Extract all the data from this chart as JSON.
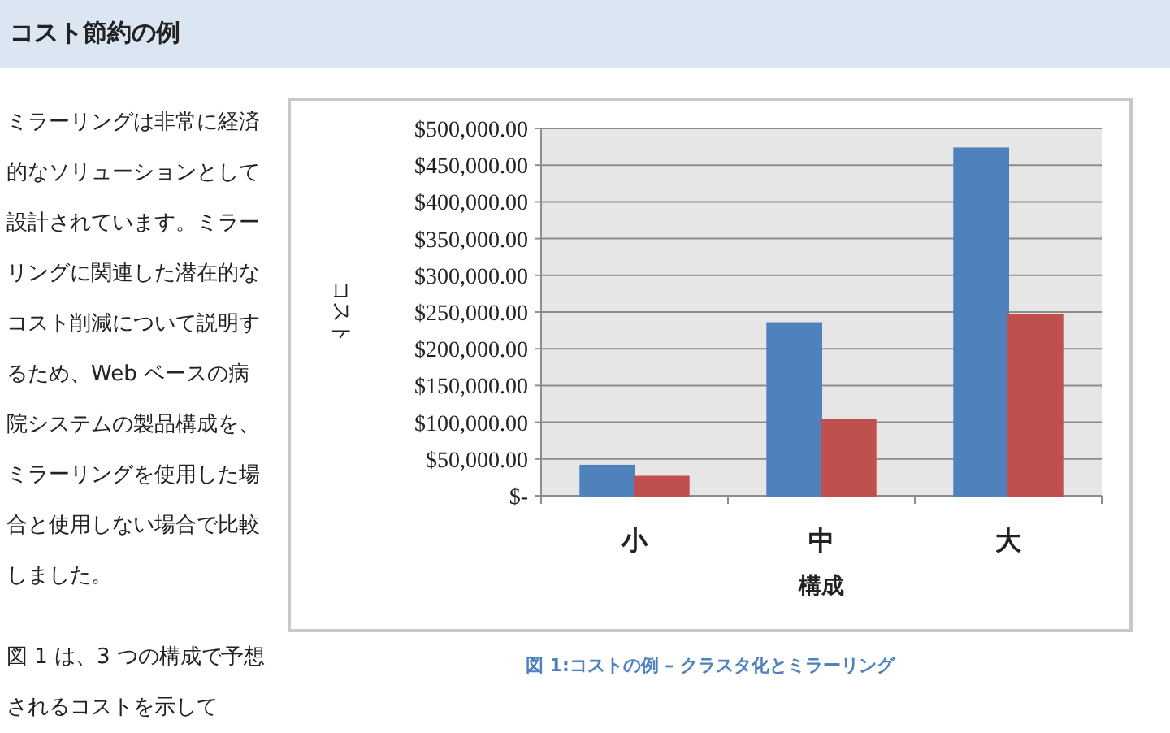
{
  "chart_data": {
    "type": "bar",
    "title": "コスト節約の例",
    "xlabel": "構成",
    "ylabel": "コスト",
    "categories": [
      "小",
      "中",
      "大"
    ],
    "series": [
      {
        "color": "#4f81bd",
        "values": [
          41000,
          235000,
          473000
        ]
      },
      {
        "color": "#c0504d",
        "values": [
          26000,
          103000,
          246000
        ]
      }
    ],
    "ylim": [
      0,
      500000
    ],
    "yticks": [
      {
        "value": 0,
        "label": "$-"
      },
      {
        "value": 50000,
        "label": "$50,000.00"
      },
      {
        "value": 100000,
        "label": "$100,000.00"
      },
      {
        "value": 150000,
        "label": "$150,000.00"
      },
      {
        "value": 200000,
        "label": "$200,000.00"
      },
      {
        "value": 250000,
        "label": "$250,000.00"
      },
      {
        "value": 300000,
        "label": "$300,000.00"
      },
      {
        "value": 350000,
        "label": "$350,000.00"
      },
      {
        "value": 400000,
        "label": "$400,000.00"
      },
      {
        "value": 450000,
        "label": "$450,000.00"
      },
      {
        "value": 500000,
        "label": "$500,000.00"
      }
    ],
    "grid": "y",
    "annotations": [
      "ミラーリングは非常に経済的なソリューションとして設計されています。ミラーリングに関連した潜在的なコスト削減について説明するため、Web ベースの病院システムの製品構成を、ミラーリングを使用した場合と使用しない場合で比較しました。",
      "図 1 は、3 つの構成で予想されるコストを示して",
      "図 1:コストの例 – クラスタ化とミラーリング"
    ]
  }
}
